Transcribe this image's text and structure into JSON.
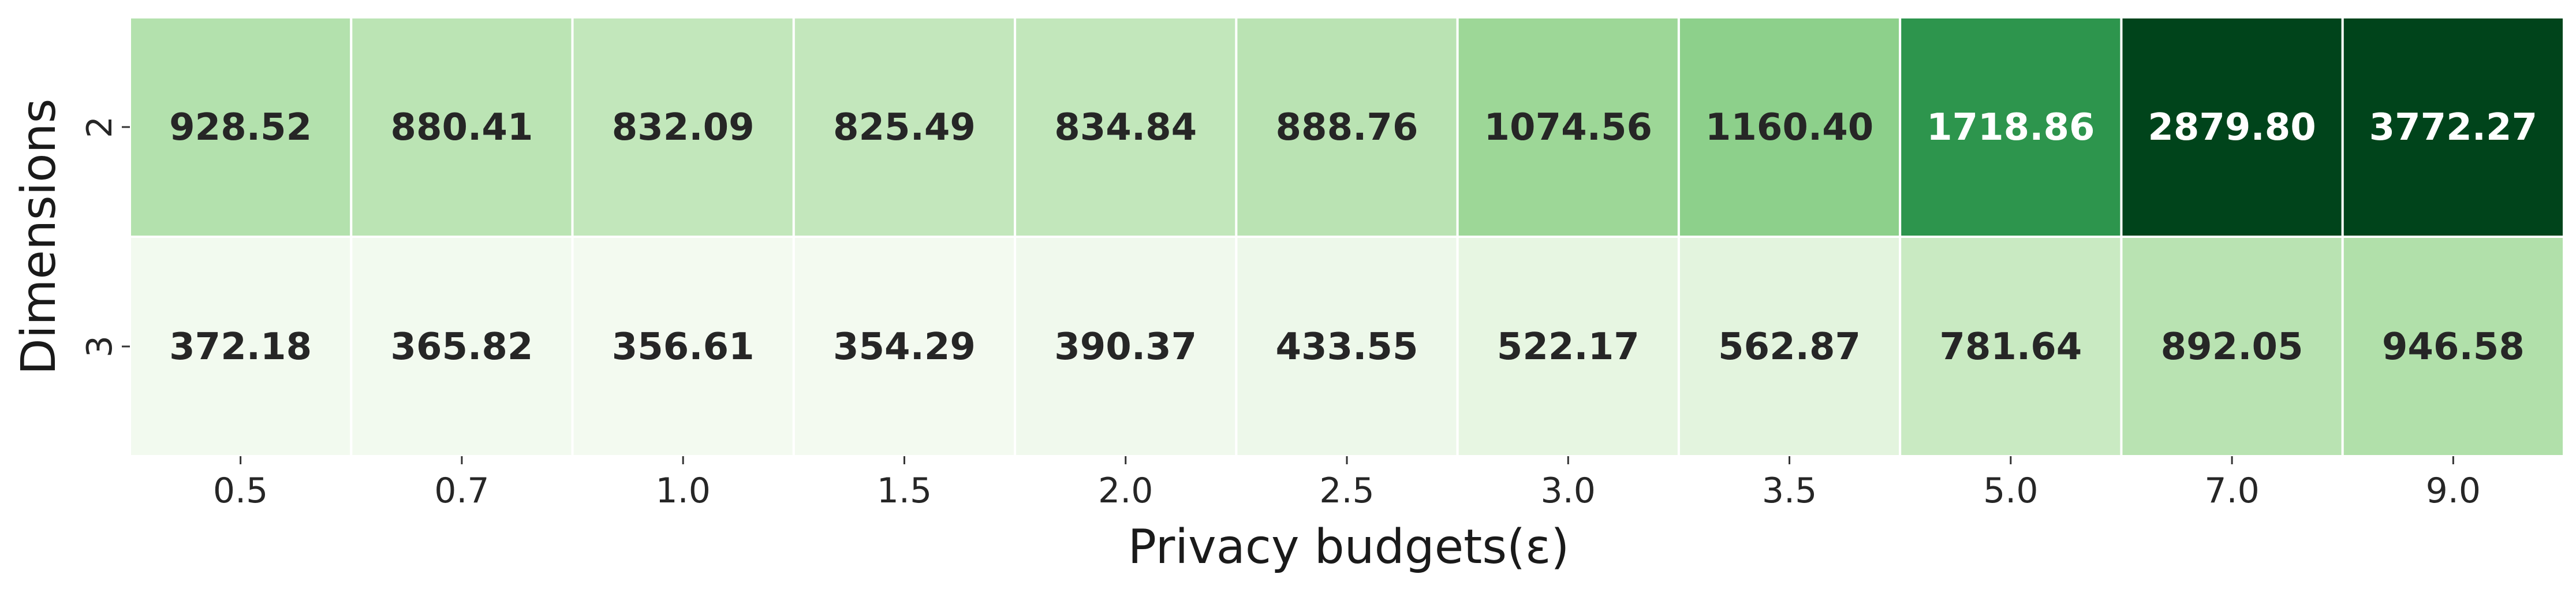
{
  "chart_data": {
    "type": "heatmap",
    "title": "",
    "xlabel": "Privacy budgets(ε)",
    "ylabel": "Dimensions",
    "x_categories": [
      "0.5",
      "0.7",
      "1.0",
      "1.5",
      "2.0",
      "2.5",
      "3.0",
      "3.5",
      "5.0",
      "7.0",
      "9.0"
    ],
    "y_categories": [
      "2",
      "3"
    ],
    "values": [
      [
        928.52,
        880.41,
        832.09,
        825.49,
        834.84,
        888.76,
        1074.56,
        1160.4,
        1718.86,
        2879.8,
        3772.27
      ],
      [
        372.18,
        365.82,
        356.61,
        354.29,
        390.37,
        433.55,
        522.17,
        562.87,
        781.64,
        892.05,
        946.58
      ]
    ],
    "value_labels": [
      [
        "928.52",
        "880.41",
        "832.09",
        "825.49",
        "834.84",
        "888.76",
        "1074.56",
        "1160.40",
        "1718.86",
        "2879.80",
        "3772.27"
      ],
      [
        "372.18",
        "365.82",
        "356.61",
        "354.29",
        "390.37",
        "433.55",
        "522.17",
        "562.87",
        "781.64",
        "892.05",
        "946.58"
      ]
    ],
    "colormap": "Greens",
    "color_stops": [
      "#f7fcf5",
      "#e5f5e0",
      "#c7e9c0",
      "#a1d99b",
      "#74c476",
      "#41ab5d",
      "#238b45",
      "#006d2c",
      "#00441b"
    ],
    "color_range": [
      300,
      2300
    ],
    "text_colors": {
      "dark": "#262626",
      "light": "#ffffff"
    },
    "grid": false,
    "colorbar": false
  }
}
